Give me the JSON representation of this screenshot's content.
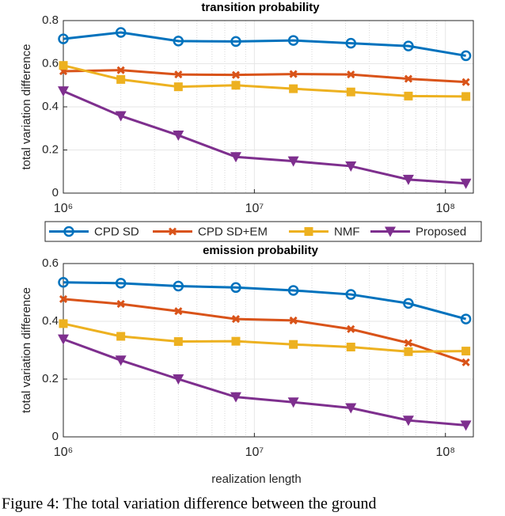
{
  "chart_data": [
    {
      "type": "line",
      "title": "transition probability",
      "ylabel": "total variation difference",
      "x": [
        1000000,
        2000000,
        4000000,
        8000000,
        16000000,
        32000000,
        64000000,
        128000000
      ],
      "xscale": "log",
      "xlim": [
        1000000,
        140000000
      ],
      "xticks": [
        {
          "value": 1000000,
          "label": "10⁶"
        },
        {
          "value": 10000000,
          "label": "10⁷"
        },
        {
          "value": 100000000,
          "label": "10⁸"
        }
      ],
      "xminorticks": [
        2000000,
        3000000,
        4000000,
        5000000,
        6000000,
        7000000,
        8000000,
        9000000,
        20000000,
        30000000,
        40000000,
        50000000,
        60000000,
        70000000,
        80000000,
        90000000
      ],
      "ylim": [
        0,
        0.8
      ],
      "yticks": [
        0,
        0.2,
        0.4,
        0.6,
        0.8
      ],
      "grid": true,
      "series": [
        {
          "name": "CPD SD",
          "color": "#0072bd",
          "marker": "circle",
          "values": [
            0.715,
            0.745,
            0.705,
            0.703,
            0.708,
            0.695,
            0.682,
            0.637
          ]
        },
        {
          "name": "CPD SD+EM",
          "color": "#d95319",
          "marker": "x",
          "values": [
            0.565,
            0.57,
            0.55,
            0.548,
            0.552,
            0.55,
            0.53,
            0.515
          ]
        },
        {
          "name": "NMF",
          "color": "#edb120",
          "marker": "square",
          "values": [
            0.592,
            0.527,
            0.493,
            0.5,
            0.484,
            0.469,
            0.45,
            0.448
          ]
        },
        {
          "name": "Proposed",
          "color": "#7e2f8e",
          "marker": "triangle-down",
          "values": [
            0.473,
            0.358,
            0.268,
            0.168,
            0.148,
            0.125,
            0.063,
            0.045
          ]
        }
      ]
    },
    {
      "type": "line",
      "title": "emission probability",
      "ylabel": "total variation difference",
      "xlabel": "realization length",
      "x": [
        1000000,
        2000000,
        4000000,
        8000000,
        16000000,
        32000000,
        64000000,
        128000000
      ],
      "xscale": "log",
      "xlim": [
        1000000,
        140000000
      ],
      "xticks": [
        {
          "value": 1000000,
          "label": "10⁶"
        },
        {
          "value": 10000000,
          "label": "10⁷"
        },
        {
          "value": 100000000,
          "label": "10⁸"
        }
      ],
      "xminorticks": [
        2000000,
        3000000,
        4000000,
        5000000,
        6000000,
        7000000,
        8000000,
        9000000,
        20000000,
        30000000,
        40000000,
        50000000,
        60000000,
        70000000,
        80000000,
        90000000
      ],
      "ylim": [
        0,
        0.6
      ],
      "yticks": [
        0,
        0.2,
        0.4,
        0.6
      ],
      "grid": true,
      "series": [
        {
          "color": "#0072bd",
          "marker": "circle",
          "values": [
            0.535,
            0.532,
            0.522,
            0.517,
            0.507,
            0.493,
            0.462,
            0.408
          ]
        },
        {
          "color": "#d95319",
          "marker": "x",
          "values": [
            0.477,
            0.46,
            0.435,
            0.408,
            0.403,
            0.373,
            0.325,
            0.258
          ]
        },
        {
          "color": "#edb120",
          "marker": "square",
          "values": [
            0.392,
            0.348,
            0.33,
            0.331,
            0.32,
            0.311,
            0.295,
            0.297
          ]
        },
        {
          "color": "#7e2f8e",
          "marker": "triangle-down",
          "values": [
            0.338,
            0.265,
            0.2,
            0.138,
            0.12,
            0.1,
            0.057,
            0.04
          ]
        }
      ]
    }
  ],
  "caption": "Figure 4: The total variation difference between the ground"
}
